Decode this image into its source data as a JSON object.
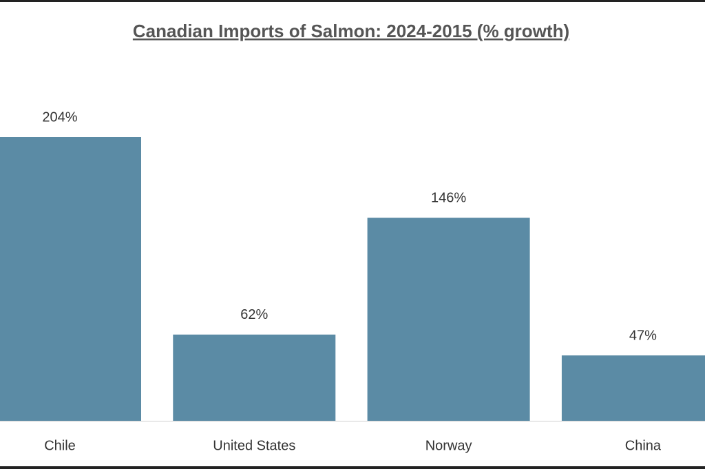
{
  "chart_data": {
    "type": "bar",
    "title": "Canadian Imports of Salmon: 2024-2015 (% growth)",
    "categories": [
      "Chile",
      "United States",
      "Norway",
      "China"
    ],
    "values": [
      204,
      62,
      146,
      47
    ],
    "value_labels": [
      "204%",
      "62%",
      "146%",
      "47%"
    ],
    "color": "#5b8ba5"
  }
}
